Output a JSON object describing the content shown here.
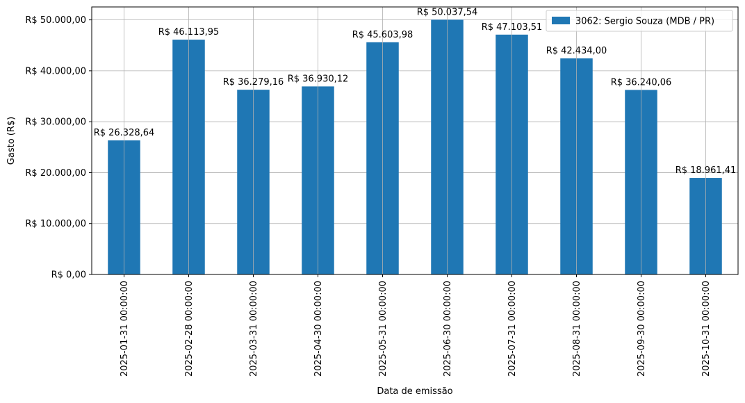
{
  "chart_data": {
    "type": "bar",
    "xlabel": "Data de emissão",
    "ylabel": "Gasto (R$)",
    "categories": [
      "2025-01-31 00:00:00",
      "2025-02-28 00:00:00",
      "2025-03-31 00:00:00",
      "2025-04-30 00:00:00",
      "2025-05-31 00:00:00",
      "2025-06-30 00:00:00",
      "2025-07-31 00:00:00",
      "2025-08-31 00:00:00",
      "2025-09-30 00:00:00",
      "2025-10-31 00:00:00"
    ],
    "series": [
      {
        "name": "3062: Sergio Souza (MDB / PR)",
        "color": "#1f77b4",
        "values": [
          26328.64,
          46113.95,
          36279.16,
          36930.12,
          45603.98,
          50037.54,
          47103.51,
          42434.0,
          36240.06,
          18961.41
        ],
        "data_labels": [
          "R$ 26.328,64",
          "R$ 46.113,95",
          "R$ 36.279,16",
          "R$ 36.930,12",
          "R$ 45.603,98",
          "R$ 50.037,54",
          "R$ 47.103,51",
          "R$ 42.434,00",
          "R$ 36.240,06",
          "R$ 18.961,41"
        ]
      }
    ],
    "ylim": [
      0,
      52539.42
    ],
    "yticks": [
      0,
      10000,
      20000,
      30000,
      40000,
      50000
    ],
    "ytick_labels": [
      "R$ 0,00",
      "R$ 10.000,00",
      "R$ 20.000,00",
      "R$ 30.000,00",
      "R$ 40.000,00",
      "R$ 50.000,00"
    ],
    "grid": true,
    "legend_position": "top-right"
  }
}
